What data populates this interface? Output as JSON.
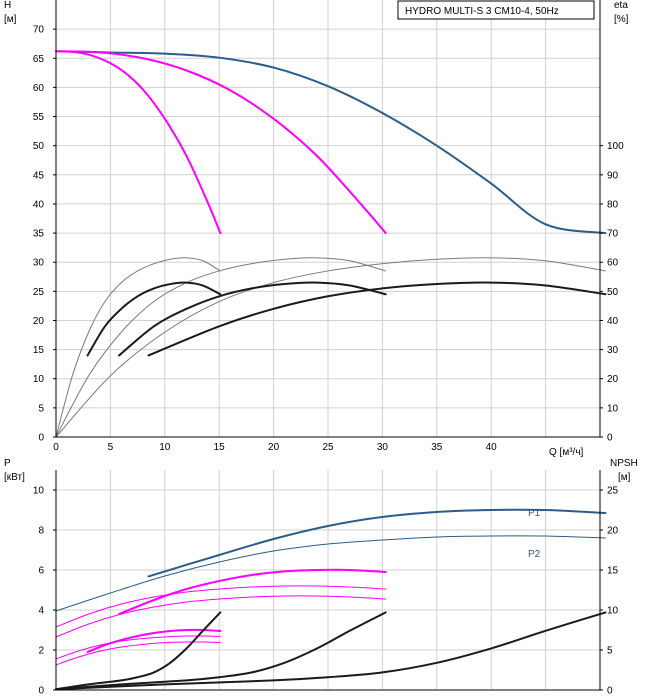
{
  "chart_data": [
    {
      "type": "line",
      "title": "HYDRO MULTI-S 3 CM10-4, 50Hz",
      "ylabel": "H",
      "yunit": "[м]",
      "y2label": "eta",
      "y2unit": "[%]",
      "xlabel": "Q [м³/ч]",
      "xlim": [
        0,
        50
      ],
      "ylim": [
        0,
        75
      ],
      "y2lim": [
        0,
        150
      ],
      "xticks": [
        "0",
        "5",
        "10",
        "15",
        "20",
        "25",
        "30",
        "35",
        "40"
      ],
      "yticks": [
        "0",
        "5",
        "10",
        "15",
        "20",
        "25",
        "30",
        "35",
        "40",
        "45",
        "50",
        "55",
        "60",
        "65",
        "70"
      ],
      "y2ticks": [
        "0",
        "10",
        "20",
        "30",
        "40",
        "50",
        "60",
        "70",
        "80",
        "90",
        "100"
      ],
      "grid": true,
      "series": [
        {
          "axis": "y",
          "color": "#2b5c8a",
          "width": 2,
          "x": [
            0,
            5,
            10,
            15,
            20,
            25,
            30,
            35,
            40,
            45,
            50.5
          ],
          "y": [
            66.2,
            66.0,
            65.8,
            65.1,
            63.4,
            60.2,
            55.6,
            50.0,
            43.5,
            36.5,
            35.0
          ]
        },
        {
          "axis": "y",
          "color": "#ff00ff",
          "width": 2,
          "x": [
            0,
            4,
            8,
            12,
            16,
            20,
            24,
            28,
            30.3
          ],
          "y": [
            66.2,
            66.0,
            65.0,
            62.9,
            59.5,
            54.6,
            48.2,
            40.0,
            35.0
          ]
        },
        {
          "axis": "y",
          "color": "#ff00ff",
          "width": 2,
          "x": [
            0,
            2,
            4,
            6,
            8,
            10,
            12,
            14,
            15.1
          ],
          "y": [
            66.2,
            66.0,
            65.0,
            63.0,
            59.6,
            54.6,
            48.2,
            40.0,
            35.0
          ]
        },
        {
          "axis": "y2",
          "color": "#7a7a7a",
          "width": 1,
          "x": [
            0,
            5,
            10,
            15,
            20,
            25,
            30,
            35,
            40,
            45,
            50.5
          ],
          "y": [
            0,
            21,
            36,
            46.5,
            53,
            57,
            59.5,
            61,
            61.5,
            60.5,
            57
          ]
        },
        {
          "axis": "y2",
          "color": "#7a7a7a",
          "width": 1,
          "x": [
            0,
            3,
            6,
            9,
            12,
            15,
            18,
            21,
            24,
            27,
            30.3
          ],
          "y": [
            0,
            21,
            36,
            46.5,
            53,
            57,
            59.5,
            61,
            61.5,
            60.5,
            57
          ]
        },
        {
          "axis": "y2",
          "color": "#7a7a7a",
          "width": 1,
          "x": [
            0,
            1.5,
            3,
            4.5,
            6,
            7.5,
            9,
            10.5,
            12,
            13.5,
            15.1
          ],
          "y": [
            0,
            21,
            36,
            46.5,
            53,
            57,
            59.5,
            61,
            61.5,
            60.5,
            57
          ]
        },
        {
          "axis": "y2",
          "color": "#1a1a1a",
          "width": 2,
          "x": [
            8.5,
            15,
            20,
            25,
            30,
            35,
            40,
            45,
            50.5
          ],
          "y": [
            28,
            38,
            44,
            48.3,
            51,
            52.5,
            53,
            52,
            49
          ]
        },
        {
          "axis": "y2",
          "color": "#1a1a1a",
          "width": 2,
          "x": [
            5.8,
            9,
            12,
            15,
            18,
            21,
            24,
            27,
            30.3
          ],
          "y": [
            28,
            38,
            44,
            48.3,
            51,
            52.5,
            53,
            52,
            49
          ]
        },
        {
          "axis": "y2",
          "color": "#1a1a1a",
          "width": 2,
          "x": [
            2.9,
            4.5,
            6,
            7.5,
            9,
            10.5,
            12,
            13.5,
            15.1
          ],
          "y": [
            28,
            38,
            44,
            48.3,
            51,
            52.5,
            53,
            52,
            49
          ]
        }
      ]
    },
    {
      "type": "line",
      "ylabel": "P",
      "yunit": "[кВт]",
      "y2label": "NPSH",
      "y2unit": "[м]",
      "xlim": [
        0,
        50
      ],
      "ylim": [
        0,
        11
      ],
      "y2lim": [
        0,
        27.5
      ],
      "yticks": [
        "0",
        "2",
        "4",
        "6",
        "8",
        "10"
      ],
      "y2ticks": [
        "0",
        "5",
        "10",
        "15",
        "20",
        "25"
      ],
      "grid": true,
      "series": [
        {
          "name": "P1",
          "axis": "y",
          "color": "#2b5c8a",
          "width": 2,
          "x": [
            8.5,
            15,
            20,
            25,
            30,
            35,
            40,
            45,
            50.5
          ],
          "y": [
            5.68,
            6.75,
            7.55,
            8.2,
            8.65,
            8.9,
            9.0,
            9.0,
            8.85
          ]
        },
        {
          "name": "P2",
          "axis": "y",
          "color": "#2b5c8a",
          "width": 1,
          "x": [
            0,
            5,
            10,
            15,
            20,
            25,
            30,
            35,
            40,
            45,
            50.5
          ],
          "y": [
            3.95,
            4.85,
            5.7,
            6.4,
            6.95,
            7.3,
            7.5,
            7.65,
            7.7,
            7.7,
            7.6
          ]
        },
        {
          "axis": "y",
          "color": "#ff00ff",
          "width": 2,
          "x": [
            5.8,
            9,
            12,
            15,
            18,
            21,
            24,
            27,
            30.3
          ],
          "y": [
            3.8,
            4.5,
            5.05,
            5.45,
            5.75,
            5.93,
            6.0,
            6.0,
            5.9
          ]
        },
        {
          "axis": "y",
          "color": "#ff00ff",
          "width": 1,
          "x": [
            0,
            3,
            6,
            9,
            12,
            15,
            18,
            21,
            24,
            27,
            30.3
          ],
          "y": [
            3.15,
            3.8,
            4.3,
            4.65,
            4.9,
            5.05,
            5.15,
            5.2,
            5.2,
            5.15,
            5.05
          ]
        },
        {
          "axis": "y",
          "color": "#ff00ff",
          "width": 1,
          "x": [
            0,
            3,
            6,
            9,
            12,
            15,
            18,
            21,
            24,
            27,
            30.3
          ],
          "y": [
            2.65,
            3.3,
            3.8,
            4.15,
            4.4,
            4.55,
            4.65,
            4.7,
            4.7,
            4.65,
            4.55
          ]
        },
        {
          "axis": "y",
          "color": "#ff00ff",
          "width": 2,
          "x": [
            2.9,
            4.5,
            6,
            7.5,
            9,
            10.5,
            12,
            13.5,
            15.1
          ],
          "y": [
            1.9,
            2.25,
            2.5,
            2.7,
            2.85,
            2.95,
            3.0,
            3.0,
            2.95
          ]
        },
        {
          "axis": "y",
          "color": "#ff00ff",
          "width": 1,
          "x": [
            0,
            1.5,
            3,
            4.5,
            6,
            7.5,
            9,
            10.5,
            12,
            13.5,
            15.1
          ],
          "y": [
            1.55,
            1.85,
            2.1,
            2.3,
            2.45,
            2.55,
            2.62,
            2.67,
            2.7,
            2.7,
            2.68
          ]
        },
        {
          "axis": "y",
          "color": "#ff00ff",
          "width": 1,
          "x": [
            0,
            1.5,
            3,
            4.5,
            6,
            7.5,
            9,
            10.5,
            12,
            13.5,
            15.1
          ],
          "y": [
            1.25,
            1.55,
            1.8,
            2.0,
            2.15,
            2.25,
            2.33,
            2.38,
            2.4,
            2.4,
            2.38
          ]
        },
        {
          "axis": "y2",
          "color": "#1a1a1a",
          "width": 2,
          "x": [
            0,
            10,
            20,
            25,
            30,
            35,
            40,
            45,
            50.5
          ],
          "y": [
            0.1,
            0.7,
            1.2,
            1.6,
            2.2,
            3.4,
            5.2,
            7.4,
            9.7
          ]
        },
        {
          "axis": "y2",
          "color": "#1a1a1a",
          "width": 2,
          "x": [
            0,
            6,
            12,
            15,
            18,
            21,
            24,
            27,
            30.3
          ],
          "y": [
            0.1,
            0.7,
            1.2,
            1.6,
            2.2,
            3.4,
            5.2,
            7.4,
            9.7
          ]
        },
        {
          "axis": "y2",
          "color": "#1a1a1a",
          "width": 2,
          "x": [
            0,
            3,
            6,
            7.5,
            9,
            10.5,
            12,
            13.5,
            15.1
          ],
          "y": [
            0.1,
            0.7,
            1.2,
            1.6,
            2.2,
            3.4,
            5.2,
            7.4,
            9.7
          ]
        }
      ]
    }
  ]
}
